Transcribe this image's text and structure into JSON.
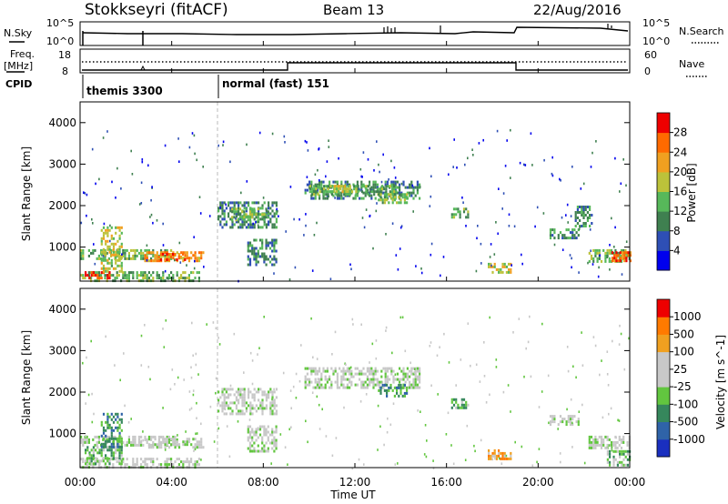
{
  "header": {
    "station": "Stokkseyri (fitACF)",
    "beam": "Beam 13",
    "date": "22/Aug/2016"
  },
  "top_panels": {
    "nsky_label": "N.Sky",
    "nsky_tick_top": "10^5",
    "nsky_tick_bottom": "10^0",
    "nsearch_label": "N.Search",
    "nsearch_tick_top": "10^5",
    "nsearch_tick_bottom": "10^0",
    "freq_label_1": "Freq.",
    "freq_label_2": "[MHz]",
    "freq_tick_top": "18",
    "freq_tick_bottom": "8",
    "nave_label": "Nave",
    "nave_tick_top": "60",
    "nave_tick_bottom": "0",
    "cpid_label": "CPID",
    "cpid_segments": [
      {
        "start_hour": 0.0,
        "text": "themis 3300"
      },
      {
        "start_hour": 6.0,
        "text": "normal (fast) 151"
      }
    ]
  },
  "colors": {
    "trace": "#000000",
    "power_scale": [
      "#0000ee",
      "#2e4fb5",
      "#3f8050",
      "#57b85a",
      "#bcc23a",
      "#f0a020",
      "#ff6a00",
      "#ee0000"
    ],
    "velocity_scale": [
      "#1a2fbf",
      "#2f63a8",
      "#36875c",
      "#62c63f",
      "#c8c8c8",
      "#c8c8c8",
      "#f0a020",
      "#ff7a00",
      "#ee0000"
    ],
    "ground_scatter": "#c8c8c8"
  },
  "chart_data": [
    {
      "type": "heatmap",
      "panel": "power",
      "ylabel": "Slant Range [km]",
      "ylim": [
        180,
        4500
      ],
      "yticks": [
        "1000",
        "2000",
        "3000",
        "4000"
      ],
      "xlabel": "Time UT",
      "xlim": [
        0,
        24
      ],
      "xticks": [
        "00:00",
        "04:00",
        "08:00",
        "12:00",
        "16:00",
        "20:00",
        "00:00"
      ],
      "colorbar_label": "Power [dB]",
      "colorbar_ticks": [
        "4",
        "8",
        "12",
        "16",
        "20",
        "24",
        "28"
      ],
      "regions": [
        {
          "t0": 0.0,
          "t1": 5.2,
          "r0": 200,
          "r1": 420,
          "level": 3
        },
        {
          "t0": 0.2,
          "t1": 1.3,
          "r0": 240,
          "r1": 420,
          "level": 7
        },
        {
          "t0": 0.0,
          "t1": 4.0,
          "r0": 700,
          "r1": 950,
          "level": 3
        },
        {
          "t0": 0.9,
          "t1": 1.8,
          "r0": 400,
          "r1": 1500,
          "level": 4
        },
        {
          "t0": 2.8,
          "t1": 5.4,
          "r0": 650,
          "r1": 900,
          "level": 5
        },
        {
          "t0": 3.4,
          "t1": 4.6,
          "r0": 700,
          "r1": 860,
          "level": 6
        },
        {
          "t0": 6.0,
          "t1": 8.6,
          "r0": 1500,
          "r1": 2100,
          "level": 2
        },
        {
          "t0": 6.6,
          "t1": 8.2,
          "r0": 1650,
          "r1": 1950,
          "level": 3
        },
        {
          "t0": 7.3,
          "t1": 8.6,
          "r0": 600,
          "r1": 1200,
          "level": 2
        },
        {
          "t0": 9.8,
          "t1": 14.8,
          "r0": 2200,
          "r1": 2600,
          "level": 2
        },
        {
          "t0": 10.0,
          "t1": 13.8,
          "r0": 2300,
          "r1": 2500,
          "level": 3
        },
        {
          "t0": 10.9,
          "t1": 11.6,
          "r0": 2350,
          "r1": 2500,
          "level": 4
        },
        {
          "t0": 13.0,
          "t1": 14.3,
          "r0": 2050,
          "r1": 2300,
          "level": 3
        },
        {
          "t0": 16.2,
          "t1": 16.9,
          "r0": 1750,
          "r1": 1950,
          "level": 3
        },
        {
          "t0": 17.8,
          "t1": 18.8,
          "r0": 420,
          "r1": 620,
          "level": 4
        },
        {
          "t0": 20.5,
          "t1": 21.8,
          "r0": 1250,
          "r1": 1450,
          "level": 2
        },
        {
          "t0": 21.6,
          "t1": 22.3,
          "r0": 1500,
          "r1": 2000,
          "level": 2
        },
        {
          "t0": 22.2,
          "t1": 24.0,
          "r0": 650,
          "r1": 950,
          "level": 3
        },
        {
          "t0": 23.2,
          "t1": 24.0,
          "r0": 700,
          "r1": 900,
          "level": 6
        }
      ]
    },
    {
      "type": "heatmap",
      "panel": "velocity",
      "ylabel": "Slant Range [km]",
      "ylim": [
        180,
        4500
      ],
      "yticks": [
        "1000",
        "2000",
        "3000",
        "4000"
      ],
      "xlabel": "Time UT",
      "xlim": [
        0,
        24
      ],
      "xticks": [
        "00:00",
        "04:00",
        "08:00",
        "12:00",
        "16:00",
        "20:00",
        "00:00"
      ],
      "colorbar_label": "Velocity [m s^-1]",
      "colorbar_ticks": [
        "1000",
        "500",
        "100",
        "25",
        "-25",
        "-100",
        "-500",
        "-1000"
      ],
      "regions": [
        {
          "t0": 0.0,
          "t1": 5.2,
          "r0": 200,
          "r1": 420,
          "level": 4
        },
        {
          "t0": 0.2,
          "t1": 1.8,
          "r0": 240,
          "r1": 700,
          "level": 3
        },
        {
          "t0": 0.0,
          "t1": 4.2,
          "r0": 700,
          "r1": 950,
          "level": 4
        },
        {
          "t0": 0.9,
          "t1": 1.8,
          "r0": 700,
          "r1": 1500,
          "level": 2
        },
        {
          "t0": 2.8,
          "t1": 5.4,
          "r0": 650,
          "r1": 900,
          "level": 4
        },
        {
          "t0": 6.0,
          "t1": 8.6,
          "r0": 1500,
          "r1": 2100,
          "level": 4
        },
        {
          "t0": 7.3,
          "t1": 8.6,
          "r0": 600,
          "r1": 1200,
          "level": 4
        },
        {
          "t0": 9.8,
          "t1": 14.8,
          "r0": 2100,
          "r1": 2600,
          "level": 4
        },
        {
          "t0": 13.0,
          "t1": 14.3,
          "r0": 1900,
          "r1": 2200,
          "level": 2
        },
        {
          "t0": 16.2,
          "t1": 16.9,
          "r0": 1600,
          "r1": 1850,
          "level": 3
        },
        {
          "t0": 17.8,
          "t1": 18.8,
          "r0": 420,
          "r1": 620,
          "level": 6
        },
        {
          "t0": 20.5,
          "t1": 21.8,
          "r0": 1250,
          "r1": 1450,
          "level": 4
        },
        {
          "t0": 22.2,
          "t1": 24.0,
          "r0": 650,
          "r1": 950,
          "level": 4
        },
        {
          "t0": 23.0,
          "t1": 24.0,
          "r0": 250,
          "r1": 600,
          "level": 3
        }
      ]
    }
  ]
}
